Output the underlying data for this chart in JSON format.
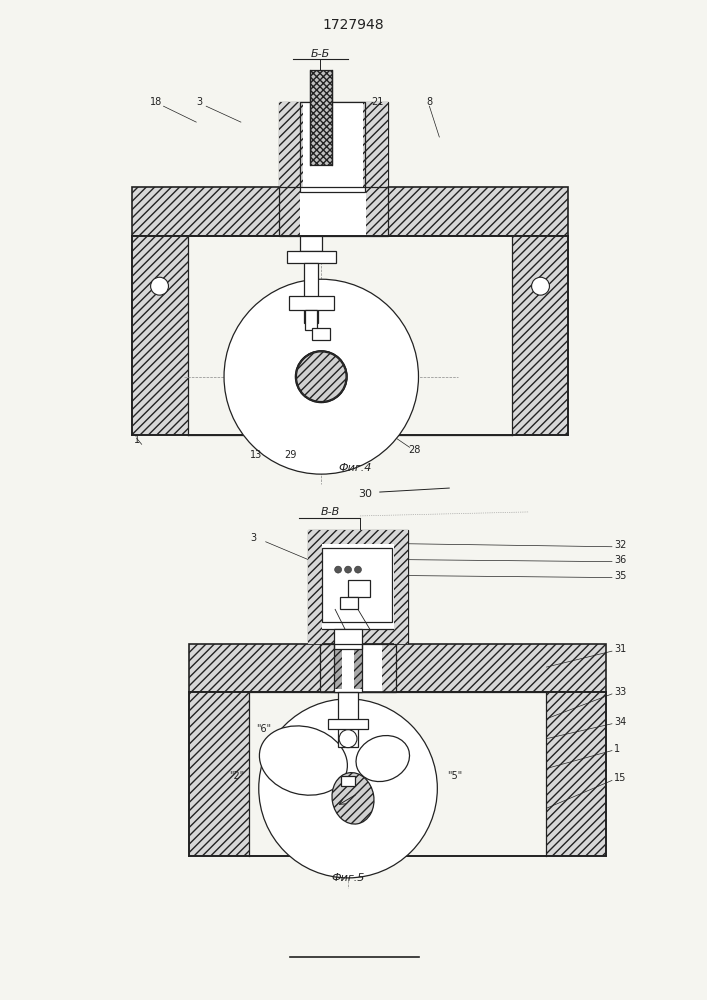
{
  "title": "1727948",
  "fig4_label": "Фиг.4",
  "fig5_label": "Фиг.5",
  "sec_label": "Б-Б",
  "sec_label2": "В-В",
  "label_30": "30",
  "bg_color": "#f5f5f0",
  "lc": "#222222",
  "hc": "#888888"
}
